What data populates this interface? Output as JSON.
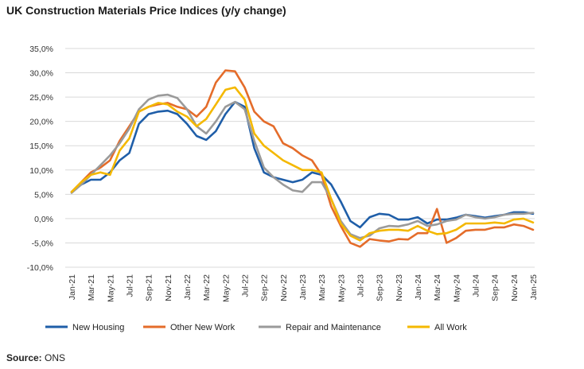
{
  "title": "UK Construction Materials Price Indices (y/y change)",
  "source": {
    "label": "Source:",
    "value": "ONS"
  },
  "chart_data": {
    "type": "line",
    "title": "UK Construction Materials Price Indices (y/y change)",
    "xlabel": "",
    "ylabel": "",
    "ylim": [
      -10,
      35
    ],
    "y_ticks": [
      "35,0%",
      "30,0%",
      "25,0%",
      "20,0%",
      "15,0%",
      "10,0%",
      "5,0%",
      "0,0%",
      "-5,0%",
      "-10,0%"
    ],
    "y_tick_values": [
      35,
      30,
      25,
      20,
      15,
      10,
      5,
      0,
      -5,
      -10
    ],
    "grid": "horizontal",
    "legend_position": "bottom",
    "x_tick_labels": [
      "Jan-21",
      "Mar-21",
      "May-21",
      "Jul-21",
      "Sep-21",
      "Nov-21",
      "Jan-22",
      "Mar-22",
      "May-22",
      "Jul-22",
      "Sep-22",
      "Nov-22",
      "Jan-23",
      "Mar-23",
      "May-23",
      "Jul-23",
      "Sep-23",
      "Nov-23",
      "Jan-24",
      "Mar-24",
      "May-24",
      "Jul-24",
      "Sep-24",
      "Nov-24",
      "Jan-25"
    ],
    "x": [
      "Jan-21",
      "Feb-21",
      "Mar-21",
      "Apr-21",
      "May-21",
      "Jun-21",
      "Jul-21",
      "Aug-21",
      "Sep-21",
      "Oct-21",
      "Nov-21",
      "Dec-21",
      "Jan-22",
      "Feb-22",
      "Mar-22",
      "Apr-22",
      "May-22",
      "Jun-22",
      "Jul-22",
      "Aug-22",
      "Sep-22",
      "Oct-22",
      "Nov-22",
      "Dec-22",
      "Jan-23",
      "Feb-23",
      "Mar-23",
      "Apr-23",
      "May-23",
      "Jun-23",
      "Jul-23",
      "Aug-23",
      "Sep-23",
      "Oct-23",
      "Nov-23",
      "Dec-23",
      "Jan-24",
      "Feb-24",
      "Mar-24",
      "Apr-24",
      "May-24",
      "Jun-24",
      "Jul-24",
      "Aug-24",
      "Sep-24",
      "Oct-24",
      "Nov-24",
      "Dec-24",
      "Jan-25"
    ],
    "series": [
      {
        "name": "New Housing",
        "color": "#1f5ea8",
        "values": [
          5.5,
          7.0,
          8.0,
          8.0,
          9.5,
          12.0,
          13.5,
          19.5,
          21.5,
          22.0,
          22.2,
          21.5,
          19.5,
          17.0,
          16.2,
          18.0,
          21.5,
          24.0,
          23.0,
          14.5,
          9.5,
          8.5,
          8.0,
          7.5,
          8.0,
          9.5,
          9.0,
          7.0,
          3.5,
          -0.5,
          -1.8,
          0.3,
          1.0,
          0.8,
          -0.2,
          -0.2,
          0.3,
          -1.0,
          -0.2,
          -0.2,
          0.2,
          0.8,
          0.5,
          0.2,
          0.5,
          0.8,
          1.3,
          1.3,
          1.0
        ]
      },
      {
        "name": "Other New Work",
        "color": "#e46c2a",
        "values": [
          5.5,
          7.5,
          9.5,
          10.5,
          12.0,
          16.0,
          19.0,
          22.0,
          23.0,
          23.5,
          23.8,
          23.0,
          22.5,
          21.0,
          23.0,
          28.0,
          30.5,
          30.3,
          27.0,
          22.0,
          20.0,
          19.0,
          15.5,
          14.5,
          13.0,
          12.0,
          9.0,
          2.5,
          -1.5,
          -5.0,
          -5.8,
          -4.2,
          -4.5,
          -4.7,
          -4.2,
          -4.3,
          -3.0,
          -3.0,
          2.0,
          -5.0,
          -4.0,
          -2.5,
          -2.3,
          -2.3,
          -1.8,
          -1.8,
          -1.2,
          -1.5,
          -2.3
        ]
      },
      {
        "name": "Repair and Maintenance",
        "color": "#9a9a9a",
        "values": [
          5.3,
          7.0,
          9.0,
          11.0,
          13.0,
          15.5,
          18.5,
          22.5,
          24.5,
          25.3,
          25.5,
          24.8,
          22.5,
          19.0,
          17.5,
          20.0,
          23.0,
          24.0,
          22.5,
          16.0,
          10.5,
          8.5,
          7.0,
          5.8,
          5.5,
          7.5,
          7.5,
          4.0,
          -0.5,
          -3.2,
          -4.0,
          -3.5,
          -2.0,
          -1.5,
          -1.6,
          -1.2,
          -0.5,
          -1.5,
          -1.2,
          -0.5,
          -0.2,
          0.8,
          0.3,
          0.0,
          0.3,
          0.8,
          1.0,
          1.0,
          1.2
        ]
      },
      {
        "name": "All Work",
        "color": "#f4b800",
        "values": [
          5.5,
          7.5,
          9.0,
          9.5,
          9.0,
          14.0,
          16.5,
          22.0,
          23.0,
          23.8,
          23.5,
          22.0,
          21.0,
          19.0,
          20.5,
          23.5,
          26.5,
          27.0,
          24.5,
          17.5,
          15.0,
          13.5,
          12.0,
          11.0,
          10.0,
          10.0,
          9.5,
          4.0,
          -1.0,
          -3.5,
          -4.5,
          -3.0,
          -2.5,
          -2.3,
          -2.3,
          -2.5,
          -1.5,
          -2.5,
          -3.2,
          -3.0,
          -2.3,
          -1.0,
          -1.0,
          -1.0,
          -0.8,
          -1.0,
          -0.2,
          0.0,
          -0.8
        ]
      }
    ]
  }
}
